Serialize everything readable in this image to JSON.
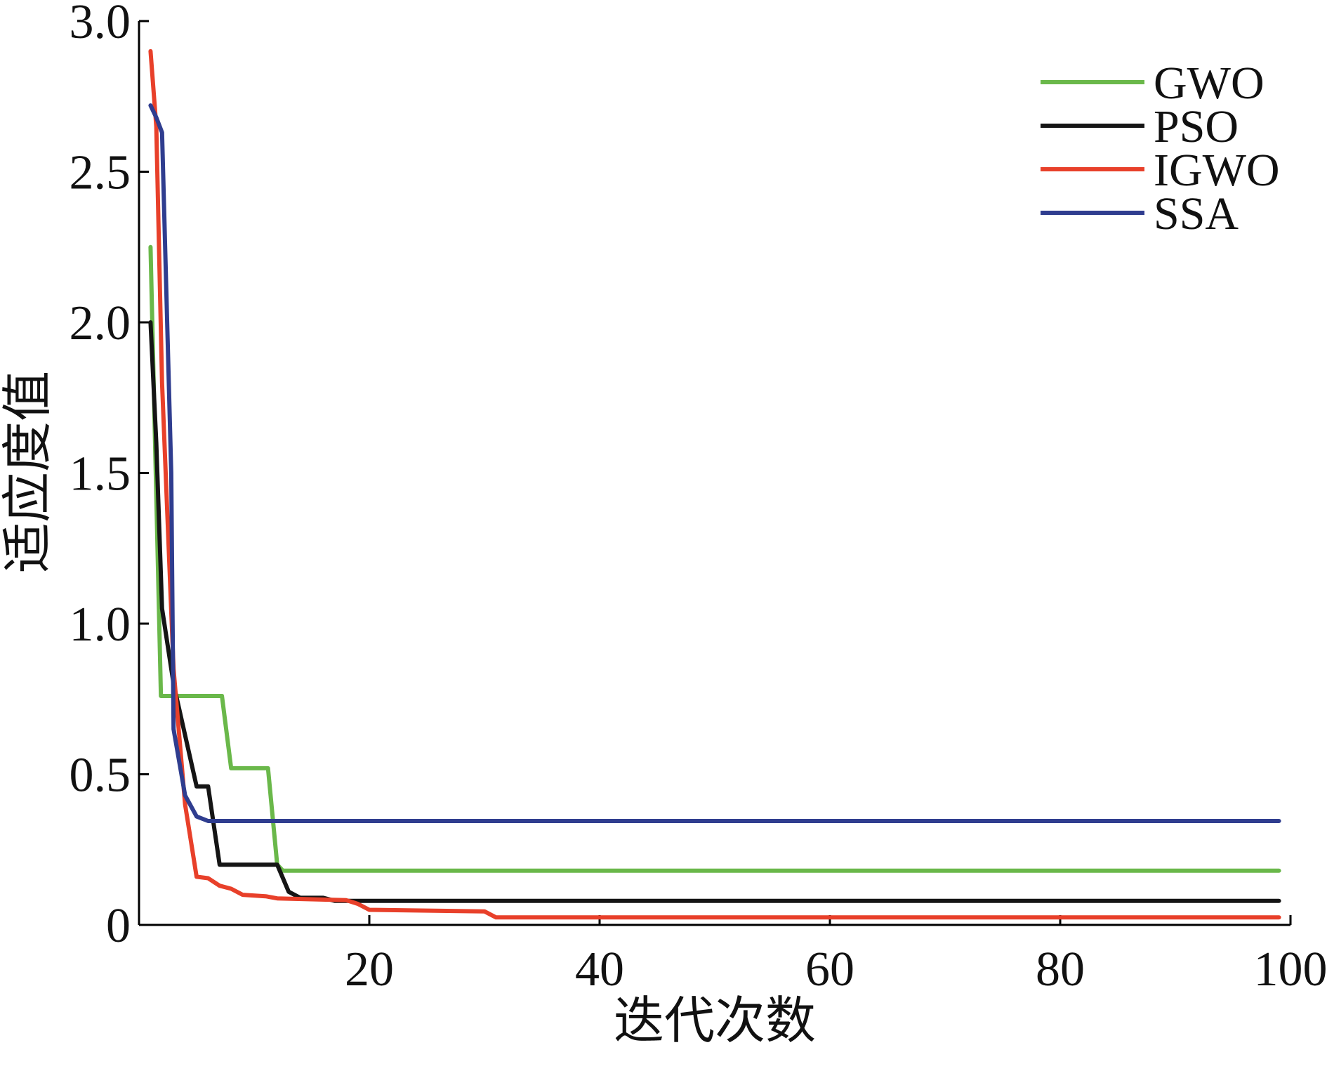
{
  "chart_data": {
    "type": "line",
    "title": "",
    "xlabel": "迭代次数",
    "ylabel": "适应度值",
    "xlim": [
      0,
      100
    ],
    "ylim": [
      0,
      3.0
    ],
    "xticks": [
      20,
      40,
      60,
      80,
      100
    ],
    "xtick_labels": [
      "20",
      "40",
      "60",
      "80",
      "100"
    ],
    "yticks": [
      0,
      0.5,
      1.0,
      1.5,
      2.0,
      2.5,
      3.0
    ],
    "ytick_labels": [
      "0",
      "0.5",
      "1.0",
      "1.5",
      "2.0",
      "2.5",
      "3.0"
    ],
    "grid": false,
    "legend": "top-right",
    "series": [
      {
        "name": "GWO",
        "color": "#6ab84a",
        "points": [
          [
            1,
            2.25
          ],
          [
            1.9,
            0.76
          ],
          [
            7.2,
            0.76
          ],
          [
            8,
            0.52
          ],
          [
            11.2,
            0.52
          ],
          [
            12,
            0.2
          ],
          [
            12.5,
            0.18
          ],
          [
            99,
            0.18
          ]
        ]
      },
      {
        "name": "PSO",
        "color": "#151515",
        "points": [
          [
            1,
            2.0
          ],
          [
            1.5,
            1.6
          ],
          [
            2,
            1.05
          ],
          [
            3,
            0.8
          ],
          [
            5,
            0.46
          ],
          [
            6,
            0.46
          ],
          [
            7,
            0.2
          ],
          [
            12,
            0.2
          ],
          [
            13,
            0.11
          ],
          [
            14,
            0.09
          ],
          [
            16,
            0.09
          ],
          [
            17,
            0.08
          ],
          [
            99,
            0.08
          ]
        ]
      },
      {
        "name": "IGWO",
        "color": "#e8402a",
        "points": [
          [
            1,
            2.9
          ],
          [
            1.5,
            2.65
          ],
          [
            2,
            1.8
          ],
          [
            3,
            0.85
          ],
          [
            4,
            0.4
          ],
          [
            5,
            0.16
          ],
          [
            6,
            0.155
          ],
          [
            7,
            0.13
          ],
          [
            8,
            0.12
          ],
          [
            9,
            0.1
          ],
          [
            11,
            0.095
          ],
          [
            12,
            0.088
          ],
          [
            18,
            0.082
          ],
          [
            19,
            0.07
          ],
          [
            20,
            0.05
          ],
          [
            30,
            0.045
          ],
          [
            31,
            0.025
          ],
          [
            99,
            0.025
          ]
        ]
      },
      {
        "name": "SSA",
        "color": "#2f3d8f",
        "points": [
          [
            1,
            2.72
          ],
          [
            1.5,
            2.68
          ],
          [
            2,
            2.63
          ],
          [
            2.8,
            1.5
          ],
          [
            3,
            0.65
          ],
          [
            4,
            0.43
          ],
          [
            5,
            0.36
          ],
          [
            6,
            0.345
          ],
          [
            99,
            0.345
          ]
        ]
      }
    ]
  }
}
